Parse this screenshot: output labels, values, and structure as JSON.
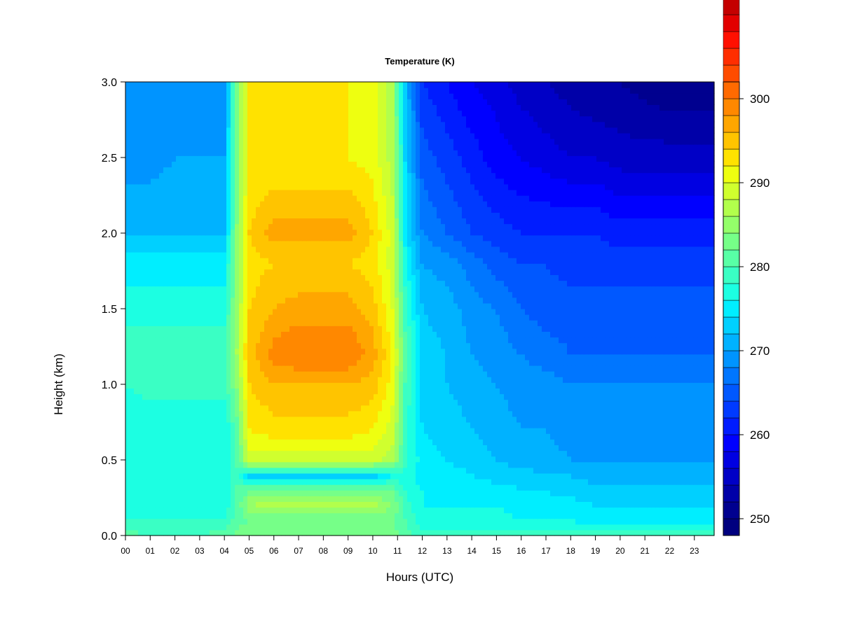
{
  "chart_data": {
    "type": "heatmap",
    "title": "Temperature (K)",
    "xlabel": "Hours (UTC)",
    "ylabel": "Height (km)",
    "x_tick_labels": [
      "00",
      "01",
      "02",
      "03",
      "04",
      "05",
      "06",
      "07",
      "08",
      "09",
      "10",
      "11",
      "12",
      "13",
      "14",
      "15",
      "16",
      "17",
      "18",
      "19",
      "20",
      "21",
      "22",
      "23"
    ],
    "xlim": [
      0,
      23.8
    ],
    "y_ticks": [
      0.0,
      0.5,
      1.0,
      1.5,
      2.0,
      2.5,
      3.0
    ],
    "y_tick_labels": [
      "0.0",
      "0.5",
      "1.0",
      "1.5",
      "2.0",
      "2.5",
      "3.0"
    ],
    "ylim": [
      0,
      3.0
    ],
    "colorbar": {
      "range": [
        248,
        302
      ],
      "step": 2,
      "ticks": [
        250,
        260,
        270,
        280,
        290,
        300
      ],
      "tick_labels": [
        "250",
        "260",
        "270",
        "280",
        "290",
        "300"
      ],
      "colors": [
        "#00007F",
        "#00008F",
        "#0000A8",
        "#0000C6",
        "#0000E2",
        "#0000FF",
        "#001CFF",
        "#003AFF",
        "#0058FF",
        "#0076FF",
        "#0094FF",
        "#00B2FF",
        "#00D0FF",
        "#00EEFF",
        "#1CFFE2",
        "#3AFFC4",
        "#58FFA6",
        "#76FF88",
        "#94FF6A",
        "#B2FF4C",
        "#D0FF2E",
        "#EEFF10",
        "#FFE200",
        "#FFC400",
        "#FFA600",
        "#FF8800",
        "#FF6A00",
        "#FF4C00",
        "#FF2E00",
        "#FF1000",
        "#E20000",
        "#C40000",
        "#A60000",
        "#880000"
      ]
    },
    "temperature_grid": {
      "hours": [
        0,
        1,
        2,
        3,
        4,
        4.5,
        5,
        6,
        7,
        8,
        9,
        10,
        10.8,
        11.3,
        12,
        13,
        14,
        15,
        16,
        17,
        18,
        19,
        20,
        21,
        22,
        23,
        23.8
      ],
      "heights_km": [
        0.0,
        0.1,
        0.2,
        0.3,
        0.4,
        0.5,
        0.7,
        1.0,
        1.2,
        1.5,
        1.8,
        2.0,
        2.5,
        3.0
      ],
      "values_K": [
        [
          281,
          280,
          280,
          280,
          281,
          283,
          283,
          283,
          283,
          283,
          283,
          283,
          283,
          281,
          279,
          279,
          279,
          279,
          279,
          279,
          279,
          279,
          279,
          279,
          280,
          279,
          279
        ],
        [
          278,
          278,
          278,
          278,
          278,
          281,
          282,
          282,
          282,
          282,
          282,
          282,
          282,
          280,
          277,
          277,
          277,
          277,
          276,
          276,
          276,
          275,
          275,
          275,
          275,
          275,
          275
        ],
        [
          277,
          277,
          277,
          277,
          277,
          280,
          286,
          287,
          287,
          287,
          287,
          287,
          284,
          279,
          276,
          276,
          276,
          276,
          275,
          275,
          275,
          274,
          274,
          274,
          274,
          274,
          274
        ],
        [
          277,
          277,
          277,
          277,
          277,
          280,
          282,
          282,
          282,
          282,
          282,
          282,
          282,
          278,
          276,
          275,
          275,
          275,
          274,
          274,
          273,
          273,
          273,
          273,
          273,
          273,
          273
        ],
        [
          277,
          277,
          277,
          277,
          277,
          280,
          273,
          273,
          273,
          273,
          273,
          273,
          276,
          277,
          275,
          275,
          274,
          273,
          273,
          272,
          272,
          271,
          271,
          271,
          271,
          271,
          271
        ],
        [
          276,
          276,
          276,
          276,
          276,
          280,
          289,
          289,
          289,
          289,
          289,
          289,
          287,
          279,
          275,
          274,
          273,
          272,
          271,
          271,
          270,
          270,
          270,
          270,
          270,
          270,
          270
        ],
        [
          276,
          276,
          276,
          276,
          276,
          281,
          292,
          293,
          293,
          293,
          293,
          292,
          289,
          279,
          274,
          273,
          272,
          271,
          270,
          270,
          269,
          269,
          269,
          269,
          269,
          269,
          269
        ],
        [
          278,
          279,
          279,
          279,
          279,
          284,
          294,
          296,
          296,
          296,
          296,
          295,
          291,
          280,
          273,
          272,
          271,
          270,
          269,
          269,
          268,
          268,
          268,
          268,
          268,
          268,
          268
        ],
        [
          280,
          280,
          280,
          280,
          280,
          286,
          295,
          299,
          300,
          300,
          300,
          297,
          292,
          281,
          273,
          272,
          270,
          269,
          268,
          267,
          266,
          266,
          266,
          266,
          266,
          266,
          266
        ],
        [
          277,
          277,
          277,
          277,
          277,
          285,
          294,
          296,
          297,
          297,
          297,
          295,
          290,
          279,
          272,
          271,
          269,
          268,
          266,
          265,
          265,
          265,
          265,
          265,
          265,
          265,
          265
        ],
        [
          275,
          275,
          275,
          275,
          275,
          284,
          293,
          294,
          294,
          294,
          294,
          293,
          289,
          277,
          270,
          269,
          267,
          265,
          264,
          264,
          263,
          263,
          263,
          263,
          263,
          263,
          263
        ],
        [
          272,
          272,
          272,
          272,
          272,
          284,
          294,
          297,
          297,
          297,
          297,
          294,
          289,
          275,
          268,
          266,
          264,
          263,
          262,
          262,
          262,
          262,
          261,
          261,
          261,
          261,
          261
        ],
        [
          269,
          269,
          270,
          270,
          270,
          283,
          292,
          292,
          292,
          292,
          292,
          291,
          287,
          274,
          265,
          263,
          261,
          259,
          258,
          257,
          256,
          256,
          255,
          255,
          255,
          255,
          255
        ],
        [
          268,
          268,
          269,
          269,
          269,
          283,
          292,
          292,
          292,
          292,
          292,
          291,
          286,
          272,
          262,
          260,
          258,
          257,
          255,
          254,
          253,
          252,
          252,
          251,
          250,
          250,
          250
        ]
      ]
    }
  }
}
